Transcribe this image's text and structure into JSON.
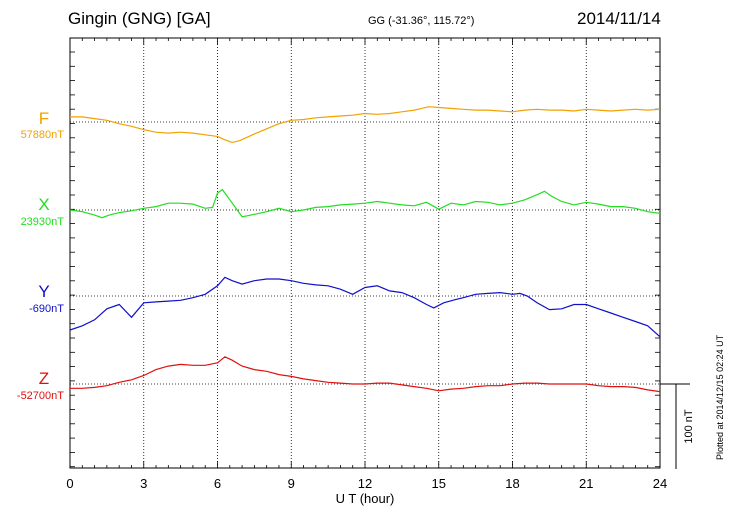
{
  "header": {
    "station": "Gingin (GNG)  [GA]",
    "coords": "GG (-31.36°, 115.72°)",
    "date": "2014/11/14"
  },
  "plotted_note": "Plotted at 2014/12/15 02:24 UT",
  "colors": {
    "F": "#f2a200",
    "X": "#22dd22",
    "Y": "#1010cc",
    "Z": "#e01010"
  },
  "chart_data": {
    "type": "line",
    "xlabel": "U T (hour)",
    "xlim": [
      0,
      24
    ],
    "xticks": [
      0,
      3,
      6,
      9,
      12,
      15,
      18,
      21,
      24
    ],
    "xtick_labels": [
      "0",
      "3",
      "6",
      "9",
      "12",
      "15",
      "18",
      "21",
      "24"
    ],
    "ylabel": "",
    "scale_bar_label": "100 nT",
    "grid": true,
    "series": [
      {
        "name": "F",
        "baseline_label": "57880nT",
        "x": [
          0,
          0.5,
          1,
          1.5,
          2,
          2.5,
          3,
          3.5,
          4,
          4.5,
          5,
          5.5,
          6,
          6.3,
          6.6,
          6.9,
          7.2,
          7.5,
          8,
          8.5,
          9,
          9.5,
          10,
          10.5,
          11,
          11.5,
          12,
          12.5,
          13,
          13.5,
          14,
          14.3,
          14.6,
          15,
          15.5,
          16,
          16.5,
          17,
          17.5,
          18,
          18.5,
          19,
          19.5,
          20,
          20.5,
          21,
          21.5,
          22,
          22.5,
          23,
          23.5,
          24
        ],
        "values": [
          6,
          6,
          4,
          2,
          -2,
          -5,
          -9,
          -12,
          -13,
          -12,
          -13,
          -15,
          -17,
          -21,
          -24,
          -22,
          -18,
          -14,
          -8,
          -2,
          2,
          3,
          5,
          6,
          7,
          8,
          10,
          9,
          10,
          12,
          14,
          16,
          18,
          17,
          16,
          15,
          14,
          14,
          13,
          12,
          14,
          15,
          14,
          14,
          13,
          15,
          14,
          13,
          14,
          15,
          14,
          15
        ]
      },
      {
        "name": "X",
        "baseline_label": "23930nT",
        "x": [
          0,
          0.5,
          1,
          1.3,
          1.6,
          2,
          2.5,
          3,
          3.5,
          4,
          4.5,
          5,
          5.5,
          5.8,
          6,
          6.2,
          6.5,
          6.8,
          7,
          7.5,
          8,
          8.5,
          9,
          9.5,
          10,
          10.5,
          11,
          11.5,
          12,
          12.5,
          13,
          13.5,
          14,
          14.5,
          15,
          15.5,
          16,
          16.5,
          17,
          17.5,
          18,
          18.5,
          19,
          19.3,
          19.6,
          20,
          20.5,
          21,
          21.5,
          22,
          22.5,
          23,
          23.5,
          24
        ],
        "values": [
          0,
          -2,
          -6,
          -9,
          -6,
          -3,
          -1,
          2,
          4,
          8,
          8,
          7,
          2,
          3,
          20,
          24,
          12,
          0,
          -8,
          -5,
          -2,
          2,
          -2,
          0,
          3,
          4,
          6,
          7,
          8,
          10,
          8,
          6,
          5,
          9,
          1,
          8,
          6,
          10,
          9,
          6,
          8,
          12,
          18,
          22,
          16,
          10,
          6,
          9,
          7,
          4,
          4,
          2,
          -2,
          -4
        ]
      },
      {
        "name": "Y",
        "baseline_label": "-690nT",
        "x": [
          0,
          0.5,
          1,
          1.5,
          2,
          2.5,
          3,
          3.5,
          4,
          4.5,
          5,
          5.5,
          6,
          6.3,
          6.6,
          7,
          7.5,
          8,
          8.5,
          9,
          9.5,
          10,
          10.5,
          11,
          11.5,
          12,
          12.5,
          13,
          13.5,
          14,
          14.5,
          14.8,
          15.2,
          15.7,
          16,
          16.5,
          17,
          17.5,
          18,
          18.3,
          18.6,
          19,
          19.5,
          20,
          20.5,
          21,
          21.5,
          22,
          22.5,
          23,
          23.5,
          24
        ],
        "values": [
          -40,
          -35,
          -28,
          -15,
          -10,
          -25,
          -8,
          -7,
          -6,
          -5,
          -2,
          2,
          12,
          22,
          18,
          14,
          18,
          20,
          20,
          18,
          15,
          13,
          12,
          8,
          2,
          10,
          12,
          6,
          4,
          -2,
          -10,
          -14,
          -8,
          -4,
          -2,
          2,
          3,
          4,
          2,
          3,
          0,
          -8,
          -16,
          -15,
          -10,
          -10,
          -15,
          -20,
          -25,
          -30,
          -35,
          -48
        ]
      },
      {
        "name": "Z",
        "baseline_label": "-52700nT",
        "x": [
          0,
          0.5,
          1,
          1.5,
          2,
          2.5,
          3,
          3.5,
          4,
          4.5,
          5,
          5.5,
          6,
          6.3,
          6.6,
          7,
          7.5,
          8,
          8.5,
          9,
          9.5,
          10,
          10.5,
          11,
          11.5,
          12,
          12.5,
          13,
          13.5,
          14,
          14.5,
          15,
          15.5,
          16,
          16.5,
          17,
          17.5,
          18,
          18.5,
          19,
          19.5,
          20,
          20.5,
          21,
          21.5,
          22,
          22.5,
          23,
          23.5,
          24
        ],
        "values": [
          -5,
          -5,
          -4,
          -2,
          2,
          5,
          10,
          17,
          21,
          23,
          22,
          22,
          25,
          32,
          28,
          21,
          17,
          15,
          11,
          9,
          6,
          4,
          2,
          1,
          0,
          0,
          1,
          1,
          -1,
          -3,
          -5,
          -8,
          -6,
          -5,
          -3,
          -2,
          -2,
          0,
          1,
          1,
          0,
          0,
          0,
          0,
          -2,
          -3,
          -3,
          -4,
          -7,
          -9
        ]
      }
    ]
  }
}
